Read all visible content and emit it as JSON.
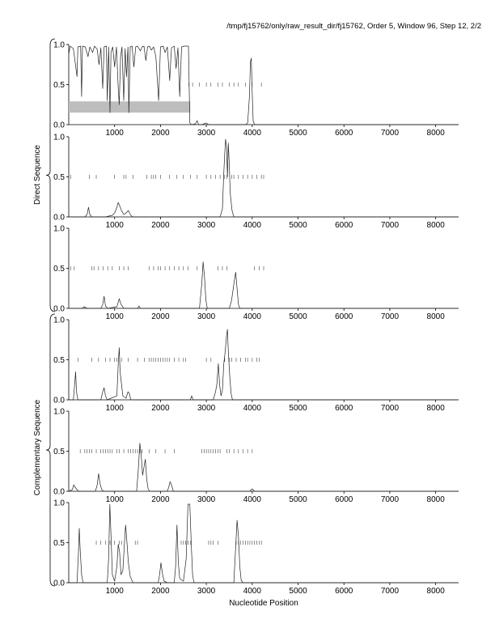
{
  "header": {
    "text": "/tmp/fj15762/only/raw_result_dir/fj15762, Order 5, Window 96, Step 12, 2/2"
  },
  "figure": {
    "xlabel": "Nucleotide Position",
    "group_labels": [
      "Direct Sequence",
      "Complementary Sequence"
    ]
  },
  "chart_data": [
    {
      "type": "line",
      "panel": 1,
      "group": "Direct Sequence",
      "xlim": [
        0,
        8500
      ],
      "ylim": [
        0,
        1
      ],
      "x_ticks": [
        1000,
        2000,
        3000,
        4000,
        5000,
        6000,
        7000,
        8000
      ],
      "y_ticks": [
        "0.0",
        "0.5",
        "1.0"
      ],
      "shaded_band": {
        "x": [
          0,
          2650
        ],
        "y": [
          0.15,
          0.29
        ]
      },
      "marks": [
        2620,
        2700,
        2850,
        3000,
        3100,
        3250,
        3350,
        3500,
        3600,
        3700,
        3850,
        4000,
        4200
      ],
      "points": [
        [
          0,
          0.88
        ],
        [
          30,
          0.98
        ],
        [
          100,
          0.95
        ],
        [
          180,
          0.6
        ],
        [
          200,
          0.97
        ],
        [
          260,
          0.98
        ],
        [
          280,
          0.35
        ],
        [
          300,
          0.98
        ],
        [
          360,
          0.97
        ],
        [
          420,
          0.85
        ],
        [
          460,
          0.97
        ],
        [
          520,
          0.9
        ],
        [
          560,
          0.98
        ],
        [
          620,
          0.94
        ],
        [
          660,
          0.75
        ],
        [
          700,
          0.96
        ],
        [
          740,
          0.45
        ],
        [
          770,
          0.97
        ],
        [
          820,
          0.98
        ],
        [
          840,
          0.3
        ],
        [
          870,
          0.97
        ],
        [
          900,
          0.15
        ],
        [
          920,
          0.9
        ],
        [
          960,
          0.97
        ],
        [
          1000,
          0.72
        ],
        [
          1040,
          0.97
        ],
        [
          1080,
          0.45
        ],
        [
          1100,
          0.25
        ],
        [
          1130,
          0.85
        ],
        [
          1160,
          0.97
        ],
        [
          1200,
          0.3
        ],
        [
          1230,
          0.95
        ],
        [
          1260,
          0.6
        ],
        [
          1290,
          0.97
        ],
        [
          1310,
          0.15
        ],
        [
          1340,
          0.97
        ],
        [
          1380,
          0.98
        ],
        [
          1420,
          0.72
        ],
        [
          1460,
          0.97
        ],
        [
          1500,
          0.98
        ],
        [
          1560,
          0.92
        ],
        [
          1600,
          0.97
        ],
        [
          1640,
          0.98
        ],
        [
          1680,
          0.8
        ],
        [
          1720,
          0.97
        ],
        [
          1760,
          0.98
        ],
        [
          1800,
          0.93
        ],
        [
          1850,
          0.97
        ],
        [
          1900,
          0.85
        ],
        [
          1960,
          0.3
        ],
        [
          2000,
          0.97
        ],
        [
          2060,
          0.98
        ],
        [
          2100,
          0.9
        ],
        [
          2150,
          0.97
        ],
        [
          2200,
          0.55
        ],
        [
          2240,
          0.96
        ],
        [
          2300,
          0.98
        ],
        [
          2340,
          0.7
        ],
        [
          2380,
          0.96
        ],
        [
          2420,
          0.35
        ],
        [
          2460,
          0.97
        ],
        [
          2520,
          0.98
        ],
        [
          2580,
          0.98
        ],
        [
          2610,
          0.98
        ],
        [
          2640,
          0.02
        ],
        [
          2680,
          0.0
        ],
        [
          2760,
          0.01
        ],
        [
          2800,
          0.05
        ],
        [
          2830,
          0.0
        ],
        [
          2900,
          0.0
        ],
        [
          3000,
          0.02
        ],
        [
          3050,
          0.0
        ],
        [
          3150,
          0.0
        ],
        [
          3300,
          0.0
        ],
        [
          3500,
          0.0
        ],
        [
          3700,
          0.0
        ],
        [
          3850,
          0.0
        ],
        [
          3900,
          0.02
        ],
        [
          3940,
          0.35
        ],
        [
          3960,
          0.78
        ],
        [
          3980,
          0.83
        ],
        [
          4000,
          0.4
        ],
        [
          4020,
          0.05
        ],
        [
          4050,
          0.0
        ],
        [
          4200,
          0.0
        ],
        [
          8500,
          0.0
        ]
      ]
    },
    {
      "type": "line",
      "panel": 2,
      "group": "Direct Sequence",
      "xlim": [
        0,
        8500
      ],
      "ylim": [
        0,
        1
      ],
      "x_ticks": [
        1000,
        2000,
        3000,
        4000,
        5000,
        6000,
        7000,
        8000
      ],
      "y_ticks": [
        "0.0",
        "0.5",
        "1.0"
      ],
      "marks": [
        40,
        450,
        600,
        1000,
        1200,
        1250,
        1400,
        1700,
        1800,
        1850,
        1900,
        2000,
        2200,
        2350,
        2500,
        2650,
        2800,
        3000,
        3100,
        3200,
        3300,
        3400,
        3450,
        3550,
        3600,
        3700,
        3800,
        3900,
        4000,
        4100,
        4200,
        4250
      ],
      "points": [
        [
          0,
          0.0
        ],
        [
          350,
          0.0
        ],
        [
          400,
          0.03
        ],
        [
          430,
          0.12
        ],
        [
          460,
          0.03
        ],
        [
          500,
          0.0
        ],
        [
          800,
          0.0
        ],
        [
          950,
          0.02
        ],
        [
          1000,
          0.05
        ],
        [
          1050,
          0.12
        ],
        [
          1080,
          0.18
        ],
        [
          1110,
          0.14
        ],
        [
          1150,
          0.08
        ],
        [
          1200,
          0.03
        ],
        [
          1250,
          0.05
        ],
        [
          1300,
          0.08
        ],
        [
          1350,
          0.02
        ],
        [
          1400,
          0.0
        ],
        [
          3300,
          0.0
        ],
        [
          3350,
          0.1
        ],
        [
          3380,
          0.55
        ],
        [
          3400,
          0.78
        ],
        [
          3420,
          0.97
        ],
        [
          3440,
          0.88
        ],
        [
          3460,
          0.5
        ],
        [
          3480,
          0.92
        ],
        [
          3500,
          0.65
        ],
        [
          3520,
          0.3
        ],
        [
          3560,
          0.08
        ],
        [
          3600,
          0.0
        ],
        [
          8500,
          0.0
        ]
      ]
    },
    {
      "type": "line",
      "panel": 3,
      "group": "Direct Sequence",
      "xlim": [
        0,
        8500
      ],
      "ylim": [
        0,
        1
      ],
      "x_ticks": [
        1000,
        2000,
        3000,
        4000,
        5000,
        6000,
        7000,
        8000
      ],
      "y_ticks": [
        "0.0",
        "0.5",
        "1.0"
      ],
      "marks": [
        40,
        120,
        500,
        550,
        650,
        750,
        850,
        950,
        1100,
        1200,
        1300,
        1750,
        1850,
        1950,
        2000,
        2100,
        2200,
        2300,
        2400,
        2500,
        2600,
        2800,
        3250,
        3350,
        3450,
        4050,
        4150,
        4250
      ],
      "points": [
        [
          0,
          0.0
        ],
        [
          300,
          0.0
        ],
        [
          330,
          0.02
        ],
        [
          400,
          0.0
        ],
        [
          700,
          0.0
        ],
        [
          740,
          0.05
        ],
        [
          770,
          0.15
        ],
        [
          800,
          0.03
        ],
        [
          850,
          0.0
        ],
        [
          1050,
          0.02
        ],
        [
          1100,
          0.12
        ],
        [
          1140,
          0.05
        ],
        [
          1200,
          0.0
        ],
        [
          1500,
          0.0
        ],
        [
          1530,
          0.03
        ],
        [
          1560,
          0.0
        ],
        [
          2850,
          0.0
        ],
        [
          2900,
          0.3
        ],
        [
          2930,
          0.58
        ],
        [
          2960,
          0.4
        ],
        [
          2990,
          0.1
        ],
        [
          3020,
          0.0
        ],
        [
          3500,
          0.0
        ],
        [
          3550,
          0.1
        ],
        [
          3600,
          0.3
        ],
        [
          3640,
          0.45
        ],
        [
          3670,
          0.25
        ],
        [
          3700,
          0.05
        ],
        [
          3730,
          0.0
        ],
        [
          8500,
          0.0
        ]
      ]
    },
    {
      "type": "line",
      "panel": 4,
      "group": "Complementary Sequence",
      "xlim": [
        0,
        8500
      ],
      "ylim": [
        0,
        1
      ],
      "x_ticks": [
        1000,
        2000,
        3000,
        4000,
        5000,
        6000,
        7000,
        8000
      ],
      "y_ticks": [
        "0.0",
        "0.5",
        "1.0"
      ],
      "marks": [
        200,
        500,
        650,
        800,
        900,
        1000,
        1050,
        1150,
        1300,
        1500,
        1650,
        1750,
        1800,
        1850,
        1900,
        1950,
        2000,
        2050,
        2100,
        2150,
        2200,
        2300,
        2400,
        2500,
        2550,
        3000,
        3100,
        3400,
        3500,
        3550,
        3650,
        3750,
        3850,
        3900,
        4000,
        4100,
        4150
      ],
      "points": [
        [
          0,
          0.0
        ],
        [
          100,
          0.0
        ],
        [
          130,
          0.2
        ],
        [
          150,
          0.35
        ],
        [
          170,
          0.1
        ],
        [
          200,
          0.0
        ],
        [
          700,
          0.0
        ],
        [
          740,
          0.1
        ],
        [
          770,
          0.15
        ],
        [
          800,
          0.05
        ],
        [
          840,
          0.0
        ],
        [
          1050,
          0.05
        ],
        [
          1080,
          0.45
        ],
        [
          1100,
          0.65
        ],
        [
          1120,
          0.35
        ],
        [
          1150,
          0.2
        ],
        [
          1180,
          0.05
        ],
        [
          1250,
          0.02
        ],
        [
          1290,
          0.1
        ],
        [
          1320,
          0.08
        ],
        [
          1350,
          0.0
        ],
        [
          2650,
          0.0
        ],
        [
          2680,
          0.05
        ],
        [
          2710,
          0.0
        ],
        [
          3150,
          0.0
        ],
        [
          3200,
          0.1
        ],
        [
          3230,
          0.2
        ],
        [
          3260,
          0.45
        ],
        [
          3290,
          0.18
        ],
        [
          3320,
          0.05
        ],
        [
          3350,
          0.12
        ],
        [
          3380,
          0.45
        ],
        [
          3410,
          0.6
        ],
        [
          3440,
          0.8
        ],
        [
          3460,
          0.88
        ],
        [
          3480,
          0.6
        ],
        [
          3510,
          0.3
        ],
        [
          3540,
          0.08
        ],
        [
          3570,
          0.0
        ],
        [
          8500,
          0.0
        ]
      ]
    },
    {
      "type": "line",
      "panel": 5,
      "group": "Complementary Sequence",
      "xlim": [
        0,
        8500
      ],
      "ylim": [
        0,
        1
      ],
      "x_ticks": [
        1000,
        2000,
        3000,
        4000,
        5000,
        6000,
        7000,
        8000
      ],
      "y_ticks": [
        "0.0",
        "0.5",
        "1.0"
      ],
      "marks": [
        250,
        350,
        400,
        450,
        500,
        600,
        700,
        750,
        800,
        850,
        900,
        950,
        1050,
        1100,
        1200,
        1300,
        1350,
        1400,
        1450,
        1500,
        1550,
        1600,
        1750,
        1900,
        2100,
        2300,
        2900,
        2950,
        3000,
        3050,
        3100,
        3150,
        3200,
        3250,
        3300,
        3450,
        3500,
        3600,
        3700,
        3800,
        3900,
        4000
      ],
      "points": [
        [
          0,
          0.0
        ],
        [
          80,
          0.02
        ],
        [
          110,
          0.08
        ],
        [
          140,
          0.05
        ],
        [
          180,
          0.02
        ],
        [
          220,
          0.0
        ],
        [
          580,
          0.0
        ],
        [
          620,
          0.08
        ],
        [
          650,
          0.22
        ],
        [
          680,
          0.1
        ],
        [
          720,
          0.02
        ],
        [
          760,
          0.0
        ],
        [
          1480,
          0.0
        ],
        [
          1520,
          0.3
        ],
        [
          1550,
          0.6
        ],
        [
          1580,
          0.45
        ],
        [
          1610,
          0.2
        ],
        [
          1640,
          0.3
        ],
        [
          1670,
          0.4
        ],
        [
          1700,
          0.15
        ],
        [
          1730,
          0.03
        ],
        [
          1760,
          0.0
        ],
        [
          2150,
          0.0
        ],
        [
          2180,
          0.05
        ],
        [
          2210,
          0.12
        ],
        [
          2240,
          0.08
        ],
        [
          2280,
          0.0
        ],
        [
          3950,
          0.0
        ],
        [
          4000,
          0.03
        ],
        [
          4050,
          0.0
        ],
        [
          8500,
          0.0
        ]
      ]
    },
    {
      "type": "line",
      "panel": 6,
      "group": "Complementary Sequence",
      "xlim": [
        0,
        8500
      ],
      "ylim": [
        0,
        1
      ],
      "x_ticks": [
        1000,
        2000,
        3000,
        4000,
        5000,
        6000,
        7000,
        8000
      ],
      "y_ticks": [
        "0.0",
        "0.5",
        "1.0"
      ],
      "marks": [
        600,
        700,
        800,
        900,
        1000,
        1100,
        1150,
        1450,
        1500,
        2450,
        2500,
        2550,
        2600,
        2650,
        3050,
        3100,
        3150,
        3250,
        3650,
        3700,
        3750,
        3800,
        3850,
        3900,
        3950,
        4000,
        4050,
        4100,
        4150,
        4200
      ],
      "points": [
        [
          0,
          0.0
        ],
        [
          180,
          0.0
        ],
        [
          210,
          0.35
        ],
        [
          230,
          0.68
        ],
        [
          250,
          0.4
        ],
        [
          280,
          0.1
        ],
        [
          310,
          0.0
        ],
        [
          840,
          0.0
        ],
        [
          870,
          0.3
        ],
        [
          895,
          0.98
        ],
        [
          920,
          0.6
        ],
        [
          950,
          0.1
        ],
        [
          1000,
          0.02
        ],
        [
          1050,
          0.2
        ],
        [
          1080,
          0.48
        ],
        [
          1110,
          0.38
        ],
        [
          1140,
          0.1
        ],
        [
          1180,
          0.15
        ],
        [
          1210,
          0.45
        ],
        [
          1240,
          0.72
        ],
        [
          1270,
          0.5
        ],
        [
          1300,
          0.25
        ],
        [
          1340,
          0.08
        ],
        [
          1400,
          0.0
        ],
        [
          1950,
          0.0
        ],
        [
          1980,
          0.1
        ],
        [
          2010,
          0.25
        ],
        [
          2040,
          0.12
        ],
        [
          2080,
          0.02
        ],
        [
          2150,
          0.0
        ],
        [
          2300,
          0.0
        ],
        [
          2330,
          0.2
        ],
        [
          2360,
          0.72
        ],
        [
          2390,
          0.25
        ],
        [
          2420,
          0.05
        ],
        [
          2500,
          0.02
        ],
        [
          2560,
          0.3
        ],
        [
          2600,
          0.98
        ],
        [
          2640,
          0.98
        ],
        [
          2670,
          0.5
        ],
        [
          2700,
          0.1
        ],
        [
          2730,
          0.0
        ],
        [
          3600,
          0.0
        ],
        [
          3640,
          0.45
        ],
        [
          3670,
          0.78
        ],
        [
          3700,
          0.58
        ],
        [
          3730,
          0.2
        ],
        [
          3760,
          0.03
        ],
        [
          3800,
          0.0
        ],
        [
          8500,
          0.0
        ]
      ]
    }
  ]
}
